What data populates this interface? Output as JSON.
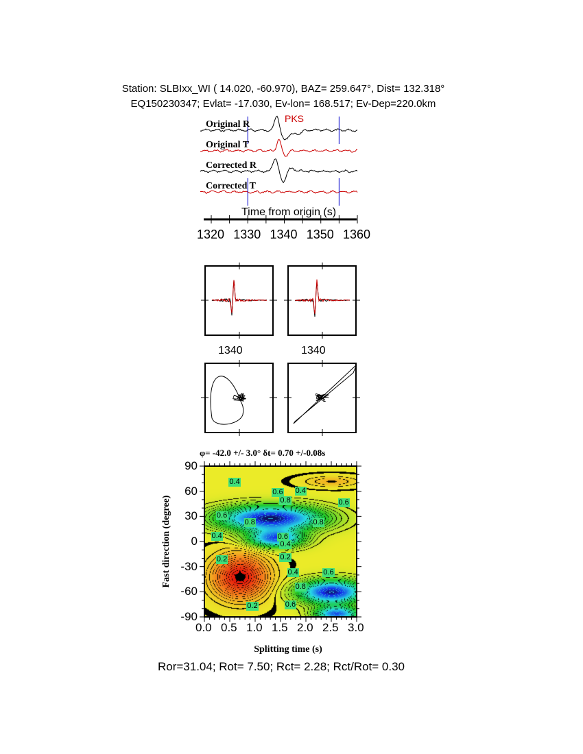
{
  "header": {
    "station_line": "Station: SLBIxx_WI (  14.020,  -60.970), BAZ=  259.647°, Dist=  132.318°",
    "event_line": "EQ150230347; Evlat= -17.030, Ev-lon= 168.517; Ev-Dep=220.0km"
  },
  "chart_data": [
    {
      "type": "line",
      "phase_label": "PKS",
      "traces": [
        {
          "name": "Original R",
          "color": "#000000"
        },
        {
          "name": "Original T",
          "color": "#cc0000"
        },
        {
          "name": "Corrected R",
          "color": "#000000"
        },
        {
          "name": "Corrected T",
          "color": "#cc0000"
        }
      ],
      "xlabel": "Time from origin (s)",
      "xlim": [
        1317,
        1361
      ],
      "xticks": [
        "1320",
        "1330",
        "1340",
        "1350",
        "1360"
      ],
      "window_markers": [
        1330,
        1355
      ],
      "window_color": "#0000cc"
    },
    {
      "type": "line",
      "panels": [
        "waveform-original",
        "waveform-corrected"
      ],
      "xtick_label": "1340",
      "series_colors": [
        "#000000",
        "#cc0000"
      ]
    },
    {
      "type": "scatter",
      "panels": [
        "particle-motion-original",
        "particle-motion-corrected"
      ]
    },
    {
      "type": "heatmap",
      "title": "φ= -42.0 +/- 3.0° δt= 0.70 +/-0.08s",
      "xlabel": "Splitting time (s)",
      "ylabel": "Fast direction (degree)",
      "xlim": [
        0,
        3
      ],
      "ylim": [
        -90,
        90
      ],
      "xticks": [
        "0.0",
        "0.5",
        "1.0",
        "1.5",
        "2.0",
        "2.5",
        "3.0"
      ],
      "yticks": [
        "90",
        "60",
        "30",
        "0",
        "-30",
        "-60",
        "-90"
      ],
      "best_fit": {
        "dt": 0.7,
        "phi": -42.0
      },
      "contour_labels": [
        {
          "text": "0.4",
          "dt": 0.6,
          "phi": 70
        },
        {
          "text": "0.6",
          "dt": 1.45,
          "phi": 58
        },
        {
          "text": "0.4",
          "dt": 1.9,
          "phi": 60
        },
        {
          "text": "0.8",
          "dt": 1.6,
          "phi": 48
        },
        {
          "text": "0.6",
          "dt": 2.75,
          "phi": 46
        },
        {
          "text": "0.6",
          "dt": 0.35,
          "phi": 30
        },
        {
          "text": "0.8",
          "dt": 0.9,
          "phi": 22
        },
        {
          "text": "0.8",
          "dt": 2.25,
          "phi": 22
        },
        {
          "text": "0.4",
          "dt": 0.25,
          "phi": 6
        },
        {
          "text": "0.6",
          "dt": 1.55,
          "phi": 5
        },
        {
          "text": "0.4",
          "dt": 1.6,
          "phi": -4
        },
        {
          "text": "0.2",
          "dt": 0.35,
          "phi": -22
        },
        {
          "text": "0.2",
          "dt": 1.6,
          "phi": -20
        },
        {
          "text": "0.4",
          "dt": 1.75,
          "phi": -38
        },
        {
          "text": "0.6",
          "dt": 2.45,
          "phi": -38
        },
        {
          "text": "0.8",
          "dt": 1.9,
          "phi": -55
        },
        {
          "text": "0.6",
          "dt": 1.7,
          "phi": -76
        },
        {
          "text": "0.2",
          "dt": 0.95,
          "phi": -78
        }
      ]
    }
  ],
  "footer": "Ror=31.04; Rot= 7.50; Rct= 2.28; Rct/Rot= 0.30"
}
